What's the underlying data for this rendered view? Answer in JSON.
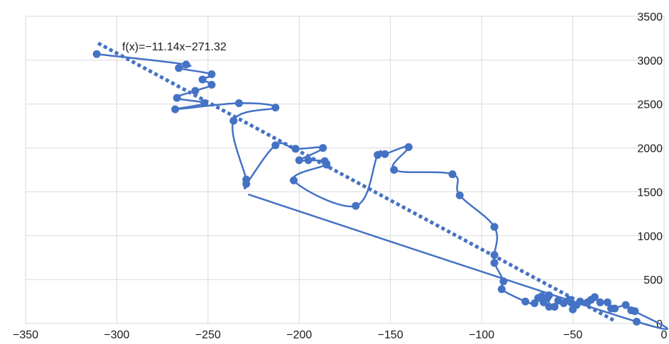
{
  "chart_data": {
    "type": "scatter",
    "title": "",
    "xlabel": "",
    "ylabel": "",
    "xlim": [
      -350,
      0
    ],
    "ylim": [
      0,
      3500
    ],
    "x_ticks": [
      "−350",
      "−300",
      "−250",
      "−200",
      "−150",
      "−100",
      "−50",
      "0"
    ],
    "y_ticks": [
      "0",
      "500",
      "1000",
      "1500",
      "2000",
      "2500",
      "3000",
      "3500"
    ],
    "grid": true,
    "legend": "none",
    "series_color": "#4472c4",
    "trendline": {
      "label": "f(x)=−11.14x−271.32",
      "slope": -11.14,
      "intercept": -271.32,
      "x_range": [
        -311,
        -27
      ],
      "style": "dotted"
    },
    "points": [
      {
        "x": -311,
        "y": 3070
      },
      {
        "x": -262,
        "y": 2950
      },
      {
        "x": -266,
        "y": 2910
      },
      {
        "x": -248,
        "y": 2840
      },
      {
        "x": -253,
        "y": 2780
      },
      {
        "x": -248,
        "y": 2720
      },
      {
        "x": -257,
        "y": 2650
      },
      {
        "x": -267,
        "y": 2570
      },
      {
        "x": -252,
        "y": 2510
      },
      {
        "x": -268,
        "y": 2440
      },
      {
        "x": -233,
        "y": 2510
      },
      {
        "x": -213,
        "y": 2460
      },
      {
        "x": -236,
        "y": 2310
      },
      {
        "x": -229,
        "y": 1640
      },
      {
        "x": -229,
        "y": 1590
      },
      {
        "x": -213,
        "y": 2030
      },
      {
        "x": -202,
        "y": 1990
      },
      {
        "x": -187,
        "y": 2000
      },
      {
        "x": -200,
        "y": 1860
      },
      {
        "x": -195,
        "y": 1860
      },
      {
        "x": -186,
        "y": 1850
      },
      {
        "x": -185,
        "y": 1810
      },
      {
        "x": -203,
        "y": 1630
      },
      {
        "x": -169,
        "y": 1340
      },
      {
        "x": -157,
        "y": 1920
      },
      {
        "x": -153,
        "y": 1930
      },
      {
        "x": -140,
        "y": 2010
      },
      {
        "x": -148,
        "y": 1750
      },
      {
        "x": -116,
        "y": 1700
      },
      {
        "x": -112,
        "y": 1460
      },
      {
        "x": -93,
        "y": 1100
      },
      {
        "x": -93,
        "y": 780
      },
      {
        "x": -93,
        "y": 690
      },
      {
        "x": -88,
        "y": 480
      },
      {
        "x": -89,
        "y": 390
      },
      {
        "x": -76,
        "y": 250
      },
      {
        "x": -71,
        "y": 230
      },
      {
        "x": -69,
        "y": 290
      },
      {
        "x": -67,
        "y": 310
      },
      {
        "x": -66,
        "y": 240
      },
      {
        "x": -64,
        "y": 290
      },
      {
        "x": -63,
        "y": 320
      },
      {
        "x": -63,
        "y": 190
      },
      {
        "x": -60,
        "y": 190
      },
      {
        "x": -58,
        "y": 260
      },
      {
        "x": -55,
        "y": 230
      },
      {
        "x": -52,
        "y": 270
      },
      {
        "x": -51,
        "y": 240
      },
      {
        "x": -50,
        "y": 160
      },
      {
        "x": -48,
        "y": 210
      },
      {
        "x": -46,
        "y": 250
      },
      {
        "x": -42,
        "y": 240
      },
      {
        "x": -40,
        "y": 270
      },
      {
        "x": -38,
        "y": 300
      },
      {
        "x": -35,
        "y": 240
      },
      {
        "x": -31,
        "y": 240
      },
      {
        "x": -29,
        "y": 170
      },
      {
        "x": -27,
        "y": 170
      },
      {
        "x": -21,
        "y": 210
      },
      {
        "x": -18,
        "y": 150
      },
      {
        "x": -16,
        "y": 140
      },
      {
        "x": -15,
        "y": 20
      }
    ],
    "curve_tail": [
      {
        "x": -228,
        "y": 1470
      }
    ]
  }
}
